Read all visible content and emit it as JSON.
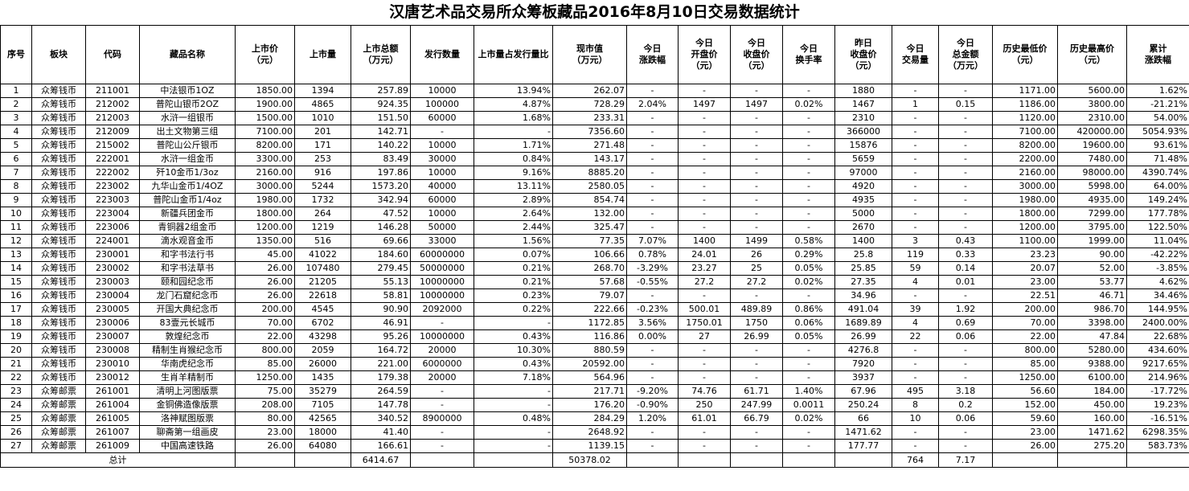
{
  "title": "汉唐艺术品交易所众筹板藏品2016年8月10日交易数据统计",
  "columns": [
    {
      "label": "序号",
      "align": "c"
    },
    {
      "label": "板块",
      "align": "c"
    },
    {
      "label": "代码",
      "align": "c"
    },
    {
      "label": "藏品名称",
      "align": "c"
    },
    {
      "label": "上市价\n（元）",
      "align": "c"
    },
    {
      "label": "上市量",
      "align": "c"
    },
    {
      "label": "上市总额\n（万元）",
      "align": "c"
    },
    {
      "label": "发行数量",
      "align": "c"
    },
    {
      "label": "上市量占发行量比",
      "align": "r"
    },
    {
      "label": "现市值\n（万元）",
      "align": "c"
    },
    {
      "label": "今日\n涨跌幅",
      "align": "c"
    },
    {
      "label": "今日\n开盘价\n（元）",
      "align": "c"
    },
    {
      "label": "今日\n收盘价\n（元）",
      "align": "c"
    },
    {
      "label": "今日\n换手率",
      "align": "c"
    },
    {
      "label": "昨日\n收盘价\n（元）",
      "align": "c"
    },
    {
      "label": "今日\n交易量",
      "align": "c"
    },
    {
      "label": "今日\n总金额\n（万元）",
      "align": "c"
    },
    {
      "label": "历史最低价\n（元）",
      "align": "c"
    },
    {
      "label": "历史最高价\n（元）",
      "align": "c"
    },
    {
      "label": "累计\n涨跌幅",
      "align": "r"
    }
  ],
  "rows": [
    [
      "1",
      "众筹钱币",
      "211001",
      "中法银币1OZ",
      "1850.00",
      "1394",
      "257.89",
      "10000",
      "13.94%",
      "262.07",
      "-",
      "-",
      "-",
      "-",
      "1880",
      "-",
      "-",
      "1171.00",
      "5600.00",
      "1.62%"
    ],
    [
      "2",
      "众筹钱币",
      "212002",
      "普陀山银币2OZ",
      "1900.00",
      "4865",
      "924.35",
      "100000",
      "4.87%",
      "728.29",
      "2.04%",
      "1497",
      "1497",
      "0.02%",
      "1467",
      "1",
      "0.15",
      "1186.00",
      "3800.00",
      "-21.21%"
    ],
    [
      "3",
      "众筹钱币",
      "212003",
      "水浒一组银币",
      "1500.00",
      "1010",
      "151.50",
      "60000",
      "1.68%",
      "233.31",
      "-",
      "-",
      "-",
      "-",
      "2310",
      "-",
      "-",
      "1120.00",
      "2310.00",
      "54.00%"
    ],
    [
      "4",
      "众筹钱币",
      "212009",
      "出土文物第三组",
      "7100.00",
      "201",
      "142.71",
      "-",
      "-",
      "7356.60",
      "-",
      "-",
      "-",
      "-",
      "366000",
      "-",
      "-",
      "7100.00",
      "420000.00",
      "5054.93%"
    ],
    [
      "5",
      "众筹钱币",
      "215002",
      "普陀山公斤银币",
      "8200.00",
      "171",
      "140.22",
      "10000",
      "1.71%",
      "271.48",
      "-",
      "-",
      "-",
      "-",
      "15876",
      "-",
      "-",
      "8200.00",
      "19600.00",
      "93.61%"
    ],
    [
      "6",
      "众筹钱币",
      "222001",
      "水浒一组金币",
      "3300.00",
      "253",
      "83.49",
      "30000",
      "0.84%",
      "143.17",
      "-",
      "-",
      "-",
      "-",
      "5659",
      "-",
      "-",
      "2200.00",
      "7480.00",
      "71.48%"
    ],
    [
      "7",
      "众筹钱币",
      "222002",
      "歼10金币1/3oz",
      "2160.00",
      "916",
      "197.86",
      "10000",
      "9.16%",
      "8885.20",
      "-",
      "-",
      "-",
      "-",
      "97000",
      "-",
      "-",
      "2160.00",
      "98000.00",
      "4390.74%"
    ],
    [
      "8",
      "众筹钱币",
      "223002",
      "九华山金币1/4OZ",
      "3000.00",
      "5244",
      "1573.20",
      "40000",
      "13.11%",
      "2580.05",
      "-",
      "-",
      "-",
      "-",
      "4920",
      "-",
      "-",
      "3000.00",
      "5998.00",
      "64.00%"
    ],
    [
      "9",
      "众筹钱币",
      "223003",
      "普陀山金币1/4oz",
      "1980.00",
      "1732",
      "342.94",
      "60000",
      "2.89%",
      "854.74",
      "-",
      "-",
      "-",
      "-",
      "4935",
      "-",
      "-",
      "1980.00",
      "4935.00",
      "149.24%"
    ],
    [
      "10",
      "众筹钱币",
      "223004",
      "新疆兵团金币",
      "1800.00",
      "264",
      "47.52",
      "10000",
      "2.64%",
      "132.00",
      "-",
      "-",
      "-",
      "-",
      "5000",
      "-",
      "-",
      "1800.00",
      "7299.00",
      "177.78%"
    ],
    [
      "11",
      "众筹钱币",
      "223006",
      "青铜器2组金币",
      "1200.00",
      "1219",
      "146.28",
      "50000",
      "2.44%",
      "325.47",
      "-",
      "-",
      "-",
      "-",
      "2670",
      "-",
      "-",
      "1200.00",
      "3795.00",
      "122.50%"
    ],
    [
      "12",
      "众筹钱币",
      "224001",
      "滴水观音金币",
      "1350.00",
      "516",
      "69.66",
      "33000",
      "1.56%",
      "77.35",
      "7.07%",
      "1400",
      "1499",
      "0.58%",
      "1400",
      "3",
      "0.43",
      "1100.00",
      "1999.00",
      "11.04%"
    ],
    [
      "13",
      "众筹钱币",
      "230001",
      "和字书法行书",
      "45.00",
      "41022",
      "184.60",
      "60000000",
      "0.07%",
      "106.66",
      "0.78%",
      "24.01",
      "26",
      "0.29%",
      "25.8",
      "119",
      "0.33",
      "23.23",
      "90.00",
      "-42.22%"
    ],
    [
      "14",
      "众筹钱币",
      "230002",
      "和字书法草书",
      "26.00",
      "107480",
      "279.45",
      "50000000",
      "0.21%",
      "268.70",
      "-3.29%",
      "23.27",
      "25",
      "0.05%",
      "25.85",
      "59",
      "0.14",
      "20.07",
      "52.00",
      "-3.85%"
    ],
    [
      "15",
      "众筹钱币",
      "230003",
      "颐和园纪念币",
      "26.00",
      "21205",
      "55.13",
      "10000000",
      "0.21%",
      "57.68",
      "-0.55%",
      "27.2",
      "27.2",
      "0.02%",
      "27.35",
      "4",
      "0.01",
      "23.00",
      "53.77",
      "4.62%"
    ],
    [
      "16",
      "众筹钱币",
      "230004",
      "龙门石窟纪念币",
      "26.00",
      "22618",
      "58.81",
      "10000000",
      "0.23%",
      "79.07",
      "-",
      "-",
      "-",
      "-",
      "34.96",
      "-",
      "-",
      "22.51",
      "46.71",
      "34.46%"
    ],
    [
      "17",
      "众筹钱币",
      "230005",
      "开国大典纪念币",
      "200.00",
      "4545",
      "90.90",
      "2092000",
      "0.22%",
      "222.66",
      "-0.23%",
      "500.01",
      "489.89",
      "0.86%",
      "491.04",
      "39",
      "1.92",
      "200.00",
      "986.70",
      "144.95%"
    ],
    [
      "18",
      "众筹钱币",
      "230006",
      "83壹元长城币",
      "70.00",
      "6702",
      "46.91",
      "-",
      "-",
      "1172.85",
      "3.56%",
      "1750.01",
      "1750",
      "0.06%",
      "1689.89",
      "4",
      "0.69",
      "70.00",
      "3398.00",
      "2400.00%"
    ],
    [
      "19",
      "众筹钱币",
      "230007",
      "敦煌纪念币",
      "22.00",
      "43298",
      "95.26",
      "10000000",
      "0.43%",
      "116.86",
      "0.00%",
      "27",
      "26.99",
      "0.05%",
      "26.99",
      "22",
      "0.06",
      "22.00",
      "47.84",
      "22.68%"
    ],
    [
      "20",
      "众筹钱币",
      "230008",
      "精制生肖猴纪念币",
      "800.00",
      "2059",
      "164.72",
      "20000",
      "10.30%",
      "880.59",
      "-",
      "-",
      "-",
      "-",
      "4276.8",
      "-",
      "-",
      "800.00",
      "5280.00",
      "434.60%"
    ],
    [
      "21",
      "众筹钱币",
      "230010",
      "华南虎纪念币",
      "85.00",
      "26000",
      "221.00",
      "6000000",
      "0.43%",
      "20592.00",
      "-",
      "-",
      "-",
      "-",
      "7920",
      "-",
      "-",
      "85.00",
      "9388.00",
      "9217.65%"
    ],
    [
      "22",
      "众筹钱币",
      "230012",
      "生肖羊精制币",
      "1250.00",
      "1435",
      "179.38",
      "20000",
      "7.18%",
      "564.96",
      "-",
      "-",
      "-",
      "-",
      "3937",
      "-",
      "-",
      "1250.00",
      "6100.00",
      "214.96%"
    ],
    [
      "23",
      "众筹邮票",
      "261001",
      "清明上河图版票",
      "75.00",
      "35279",
      "264.59",
      "-",
      "-",
      "217.71",
      "-9.20%",
      "74.76",
      "61.71",
      "1.40%",
      "67.96",
      "495",
      "3.18",
      "56.60",
      "184.00",
      "-17.72%"
    ],
    [
      "24",
      "众筹邮票",
      "261004",
      "金铜佛造像版票",
      "208.00",
      "7105",
      "147.78",
      "-",
      "-",
      "176.20",
      "-0.90%",
      "250",
      "247.99",
      "0.0011",
      "250.24",
      "8",
      "0.2",
      "152.00",
      "450.00",
      "19.23%"
    ],
    [
      "25",
      "众筹邮票",
      "261005",
      "洛神赋图版票",
      "80.00",
      "42565",
      "340.52",
      "8900000",
      "0.48%",
      "284.29",
      "1.20%",
      "61.01",
      "66.79",
      "0.02%",
      "66",
      "10",
      "0.06",
      "59.60",
      "160.00",
      "-16.51%"
    ],
    [
      "26",
      "众筹邮票",
      "261007",
      "聊斋第一组画皮",
      "23.00",
      "18000",
      "41.40",
      "-",
      "-",
      "2648.92",
      "-",
      "-",
      "-",
      "-",
      "1471.62",
      "-",
      "-",
      "23.00",
      "1471.62",
      "6298.35%"
    ],
    [
      "27",
      "众筹邮票",
      "261009",
      "中国高速铁路",
      "26.00",
      "64080",
      "166.61",
      "-",
      "-",
      "1139.15",
      "-",
      "-",
      "-",
      "-",
      "177.77",
      "-",
      "-",
      "26.00",
      "275.20",
      "583.73%"
    ]
  ],
  "row_align": [
    "c",
    "c",
    "c",
    "c",
    "r",
    "c",
    "r",
    "c",
    "r",
    "r",
    "c",
    "c",
    "c",
    "c",
    "c",
    "c",
    "c",
    "r",
    "r",
    "r"
  ],
  "totals": {
    "label": "总计",
    "listing_total": "6414.67",
    "market_value": "50378.02",
    "volume": "764",
    "amount": "7.17"
  }
}
